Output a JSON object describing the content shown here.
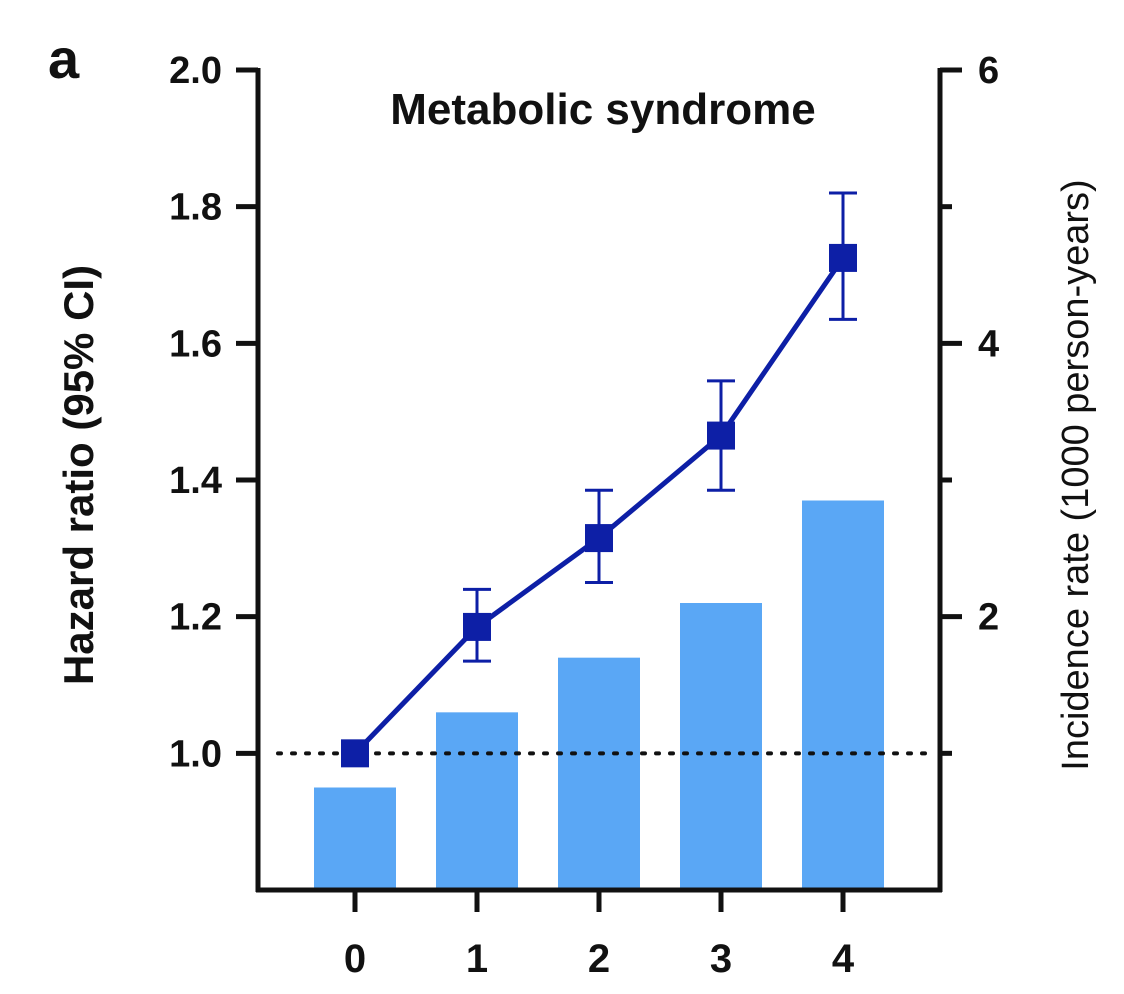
{
  "panel_label": "a",
  "chart_data": {
    "type": "bar+line",
    "title": "Metabolic syndrome",
    "xlabel": "",
    "categories": [
      "0",
      "1",
      "2",
      "3",
      "4"
    ],
    "y_left": {
      "label": "Hazard ratio (95% CI)",
      "ylim": [
        0.8,
        2.0
      ],
      "ticks": [
        "1.0",
        "1.2",
        "1.4",
        "1.6",
        "1.8",
        "2.0"
      ],
      "reference_line": 1.0
    },
    "y_right": {
      "label": "Incidence rate (1000 person-years)",
      "ylim": [
        0,
        6
      ],
      "ticks": [
        "2",
        "4",
        "6"
      ]
    },
    "series": [
      {
        "name": "Incidence rate",
        "kind": "bar",
        "axis": "right",
        "color": "#5aa7f5",
        "values": [
          0.75,
          1.3,
          1.7,
          2.1,
          2.85
        ]
      },
      {
        "name": "Hazard ratio",
        "kind": "line",
        "axis": "left",
        "color": "#0d1fa6",
        "values": [
          1.0,
          1.185,
          1.315,
          1.465,
          1.725
        ],
        "ci_low": [
          1.0,
          1.135,
          1.25,
          1.385,
          1.635
        ],
        "ci_high": [
          1.0,
          1.24,
          1.385,
          1.545,
          1.82
        ]
      }
    ],
    "legend": "none",
    "grid": false
  }
}
